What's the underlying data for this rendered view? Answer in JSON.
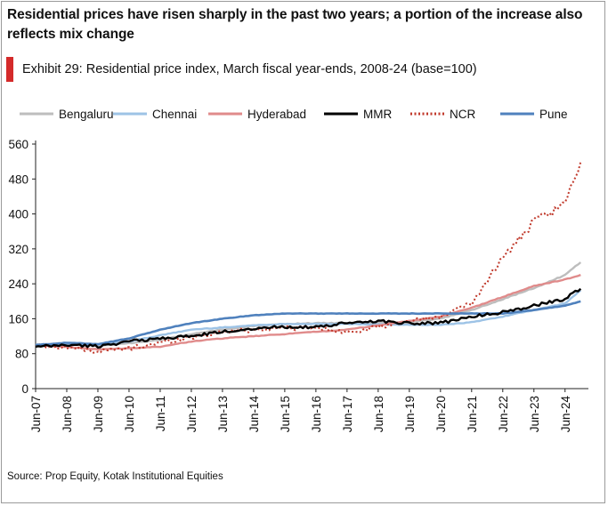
{
  "headline": "Residential prices have risen sharply in the past two years; a portion of the increase also reflects mix change",
  "exhibit_title": "Exhibit 29: Residential price index, March fiscal year-ends, 2008-24 (base=100)",
  "source": "Source: Prop Equity, Kotak Institutional Equities",
  "colors": {
    "Bengaluru": "#bdbdbd",
    "Chennai": "#9dc3e6",
    "Hyderabad": "#e08b8b",
    "MMR": "#000000",
    "NCR": "#c0392b",
    "Pune": "#4f81bd",
    "exhibit_bar": "#d42a2a"
  },
  "chart_data": {
    "type": "line",
    "title": "Exhibit 29: Residential price index, March fiscal year-ends, 2008-24 (base=100)",
    "legend_position": "top",
    "grid": false,
    "ylim": [
      0,
      560
    ],
    "yticks": [
      0,
      80,
      160,
      240,
      320,
      400,
      480,
      560
    ],
    "xticks": [
      "Jun-07",
      "Jun-08",
      "Jun-09",
      "Jun-10",
      "Jun-11",
      "Jun-12",
      "Jun-13",
      "Jun-14",
      "Jun-15",
      "Jun-16",
      "Jun-17",
      "Jun-18",
      "Jun-19",
      "Jun-20",
      "Jun-21",
      "Jun-22",
      "Jun-23",
      "Jun-24"
    ],
    "xlim": [
      "Jun-07",
      "Mar-25"
    ],
    "series": [
      {
        "name": "Bengaluru",
        "style": "solid",
        "x": [
          "Jun-07",
          "Jun-08",
          "Jun-09",
          "Jun-10",
          "Jun-11",
          "Jun-12",
          "Jun-13",
          "Jun-14",
          "Jun-15",
          "Jun-16",
          "Jun-17",
          "Jun-18",
          "Jun-19",
          "Jun-20",
          "Jun-21",
          "Jun-22",
          "Jun-23",
          "Jun-24",
          "Dec-24"
        ],
        "values": [
          100,
          104,
          98,
          104,
          112,
          125,
          135,
          143,
          148,
          150,
          150,
          152,
          153,
          160,
          180,
          205,
          230,
          260,
          290
        ]
      },
      {
        "name": "Chennai",
        "style": "solid",
        "x": [
          "Jun-07",
          "Jun-08",
          "Jun-09",
          "Jun-10",
          "Jun-11",
          "Jun-12",
          "Jun-13",
          "Jun-14",
          "Jun-15",
          "Jun-16",
          "Jun-17",
          "Jun-18",
          "Jun-19",
          "Jun-20",
          "Jun-21",
          "Jun-22",
          "Jun-23",
          "Jun-24",
          "Dec-24"
        ],
        "values": [
          100,
          102,
          100,
          108,
          122,
          135,
          140,
          145,
          148,
          148,
          148,
          147,
          146,
          146,
          152,
          165,
          180,
          195,
          225
        ]
      },
      {
        "name": "Hyderabad",
        "style": "solid",
        "x": [
          "Jun-07",
          "Jun-08",
          "Jun-09",
          "Jun-10",
          "Jun-11",
          "Jun-12",
          "Jun-13",
          "Jun-14",
          "Jun-15",
          "Jun-16",
          "Jun-17",
          "Jun-18",
          "Jun-19",
          "Jun-20",
          "Jun-21",
          "Jun-22",
          "Jun-23",
          "Jun-24",
          "Dec-24"
        ],
        "values": [
          100,
          95,
          90,
          92,
          96,
          108,
          115,
          120,
          125,
          130,
          135,
          145,
          155,
          165,
          185,
          210,
          235,
          250,
          260
        ]
      },
      {
        "name": "MMR",
        "style": "solid",
        "x": [
          "Jun-07",
          "Jun-08",
          "Jun-09",
          "Jun-10",
          "Jun-11",
          "Jun-12",
          "Jun-13",
          "Jun-14",
          "Jun-15",
          "Jun-16",
          "Jun-17",
          "Jun-18",
          "Jun-19",
          "Jun-20",
          "Jun-21",
          "Jun-22",
          "Jun-23",
          "Jun-24",
          "Dec-24"
        ],
        "values": [
          95,
          100,
          97,
          108,
          115,
          120,
          130,
          138,
          142,
          140,
          150,
          155,
          150,
          150,
          165,
          175,
          190,
          205,
          230
        ]
      },
      {
        "name": "NCR",
        "style": "dotted",
        "x": [
          "Jun-07",
          "Jun-08",
          "Jun-09",
          "Jun-10",
          "Jun-11",
          "Jun-12",
          "Jun-13",
          "Jun-14",
          "Jun-15",
          "Jun-16",
          "Jun-17",
          "Jun-18",
          "Jun-19",
          "Jun-20",
          "Jun-21",
          "Jun-22",
          "Jun-23",
          "Jun-24",
          "Dec-24"
        ],
        "values": [
          100,
          95,
          85,
          92,
          105,
          118,
          130,
          135,
          140,
          138,
          130,
          140,
          155,
          165,
          195,
          300,
          380,
          420,
          525
        ]
      },
      {
        "name": "Pune",
        "style": "solid",
        "x": [
          "Jun-07",
          "Jun-08",
          "Jun-09",
          "Jun-10",
          "Jun-11",
          "Jun-12",
          "Jun-13",
          "Jun-14",
          "Jun-15",
          "Jun-16",
          "Jun-17",
          "Jun-18",
          "Jun-19",
          "Jun-20",
          "Jun-21",
          "Jun-22",
          "Jun-23",
          "Jun-24",
          "Dec-24"
        ],
        "values": [
          100,
          105,
          102,
          115,
          135,
          150,
          160,
          168,
          172,
          172,
          172,
          172,
          172,
          172,
          172,
          172,
          180,
          190,
          200
        ]
      }
    ]
  }
}
